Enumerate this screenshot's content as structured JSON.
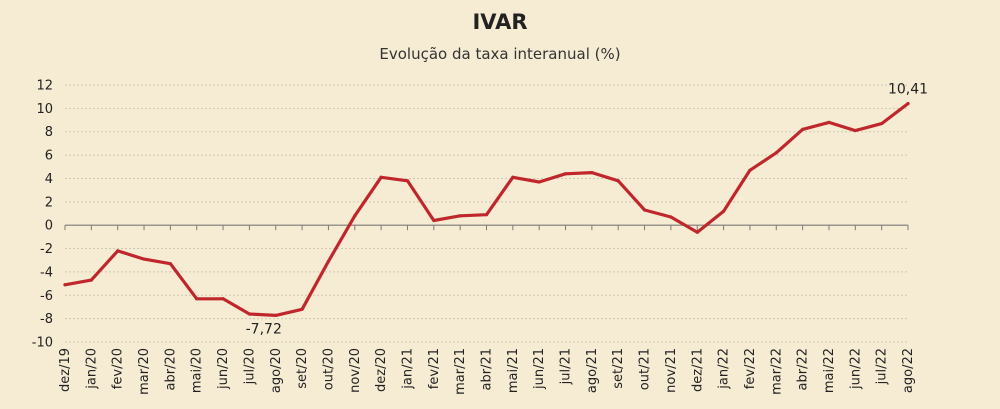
{
  "chart_data": {
    "type": "line",
    "title": "IVAR",
    "subtitle": "Evolução da taxa interanual (%)",
    "xlabel": "",
    "ylabel": "",
    "ylim": [
      -10,
      12
    ],
    "yticks": [
      -10,
      -8,
      -6,
      -4,
      -2,
      0,
      2,
      4,
      6,
      8,
      10,
      12
    ],
    "grid": true,
    "line_color": "#c0272d",
    "categories": [
      "dez/19",
      "jan/20",
      "fev/20",
      "mar/20",
      "abr/20",
      "mai/20",
      "jun/20",
      "jul/20",
      "ago/20",
      "set/20",
      "out/20",
      "nov/20",
      "dez/20",
      "jan/21",
      "fev/21",
      "mar/21",
      "abr/21",
      "mai/21",
      "jun/21",
      "jul/21",
      "ago/21",
      "set/21",
      "out/21",
      "nov/21",
      "dez/21",
      "jan/22",
      "fev/22",
      "mar/22",
      "abr/22",
      "mai/22",
      "jun/22",
      "jul/22",
      "ago/22"
    ],
    "values": [
      -5.1,
      -4.7,
      -2.2,
      -2.9,
      -3.3,
      -6.3,
      -6.3,
      -7.6,
      -7.72,
      -7.2,
      -3.1,
      0.8,
      4.1,
      3.8,
      0.4,
      0.8,
      0.9,
      4.1,
      3.7,
      4.4,
      4.5,
      3.8,
      1.3,
      0.7,
      -0.6,
      1.2,
      4.7,
      6.2,
      8.2,
      8.8,
      8.1,
      8.7,
      10.41
    ],
    "data_labels": [
      {
        "category": "ago/20",
        "text": "-7,72"
      },
      {
        "category": "ago/22",
        "text": "10,41"
      }
    ]
  }
}
